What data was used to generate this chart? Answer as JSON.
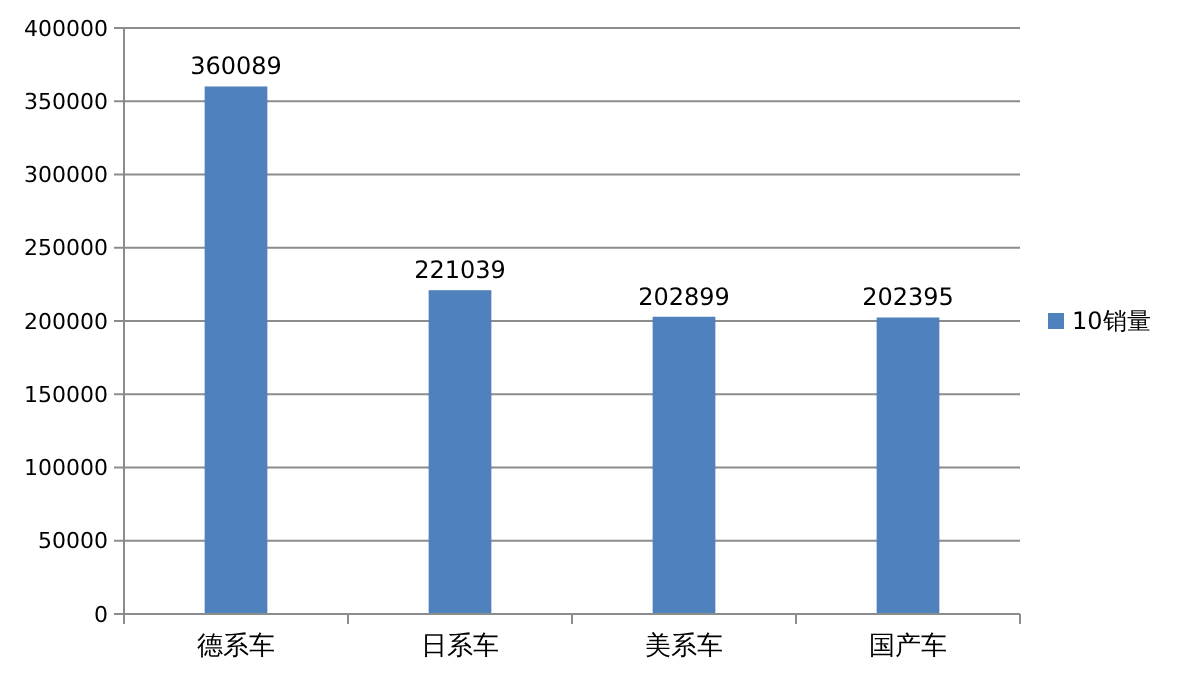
{
  "chart_data": {
    "type": "bar",
    "categories": [
      "德系车",
      "日系车",
      "美系车",
      "国产车"
    ],
    "series": [
      {
        "name": "10销量",
        "color": "#4f81bd",
        "values": [
          360089,
          221039,
          202899,
          202395
        ]
      }
    ],
    "ylim": [
      0,
      400000
    ],
    "yticks": [
      0,
      50000,
      100000,
      150000,
      200000,
      250000,
      300000,
      350000,
      400000
    ],
    "grid": "y",
    "legend": "right",
    "data_labels": true
  }
}
